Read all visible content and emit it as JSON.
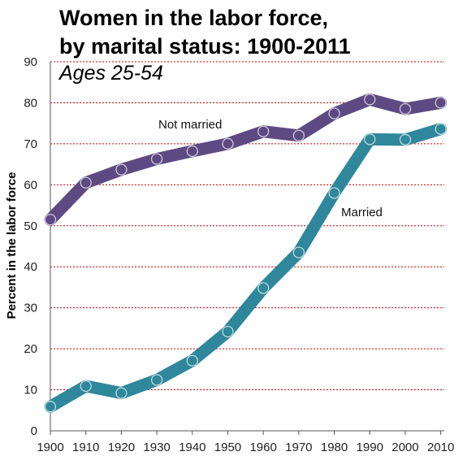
{
  "chart_data": {
    "type": "line",
    "title_line1": "Women in the labor force,",
    "title_line2": "by marital status: 1900-2011",
    "subtitle": "Ages 25-54",
    "xlabel": "",
    "ylabel": "Percent in the labor force",
    "x": [
      1900,
      1910,
      1920,
      1930,
      1940,
      1950,
      1960,
      1970,
      1980,
      1990,
      2000,
      2010
    ],
    "xlim": [
      1900,
      2011
    ],
    "ylim": [
      0,
      90
    ],
    "yticks": [
      0,
      10,
      20,
      30,
      40,
      50,
      60,
      70,
      80,
      90
    ],
    "grid": true,
    "series": [
      {
        "name": "Not married",
        "color": "#5e4a82",
        "values": [
          51.5,
          60.5,
          63.7,
          66.3,
          68.2,
          70.0,
          73.0,
          72.0,
          77.4,
          80.8,
          78.5,
          80.0
        ]
      },
      {
        "name": "Married",
        "color": "#2f879b",
        "values": [
          5.9,
          10.9,
          9.2,
          12.4,
          17.1,
          24.2,
          34.8,
          43.5,
          58.0,
          71.1,
          71.0,
          73.6
        ]
      }
    ]
  }
}
